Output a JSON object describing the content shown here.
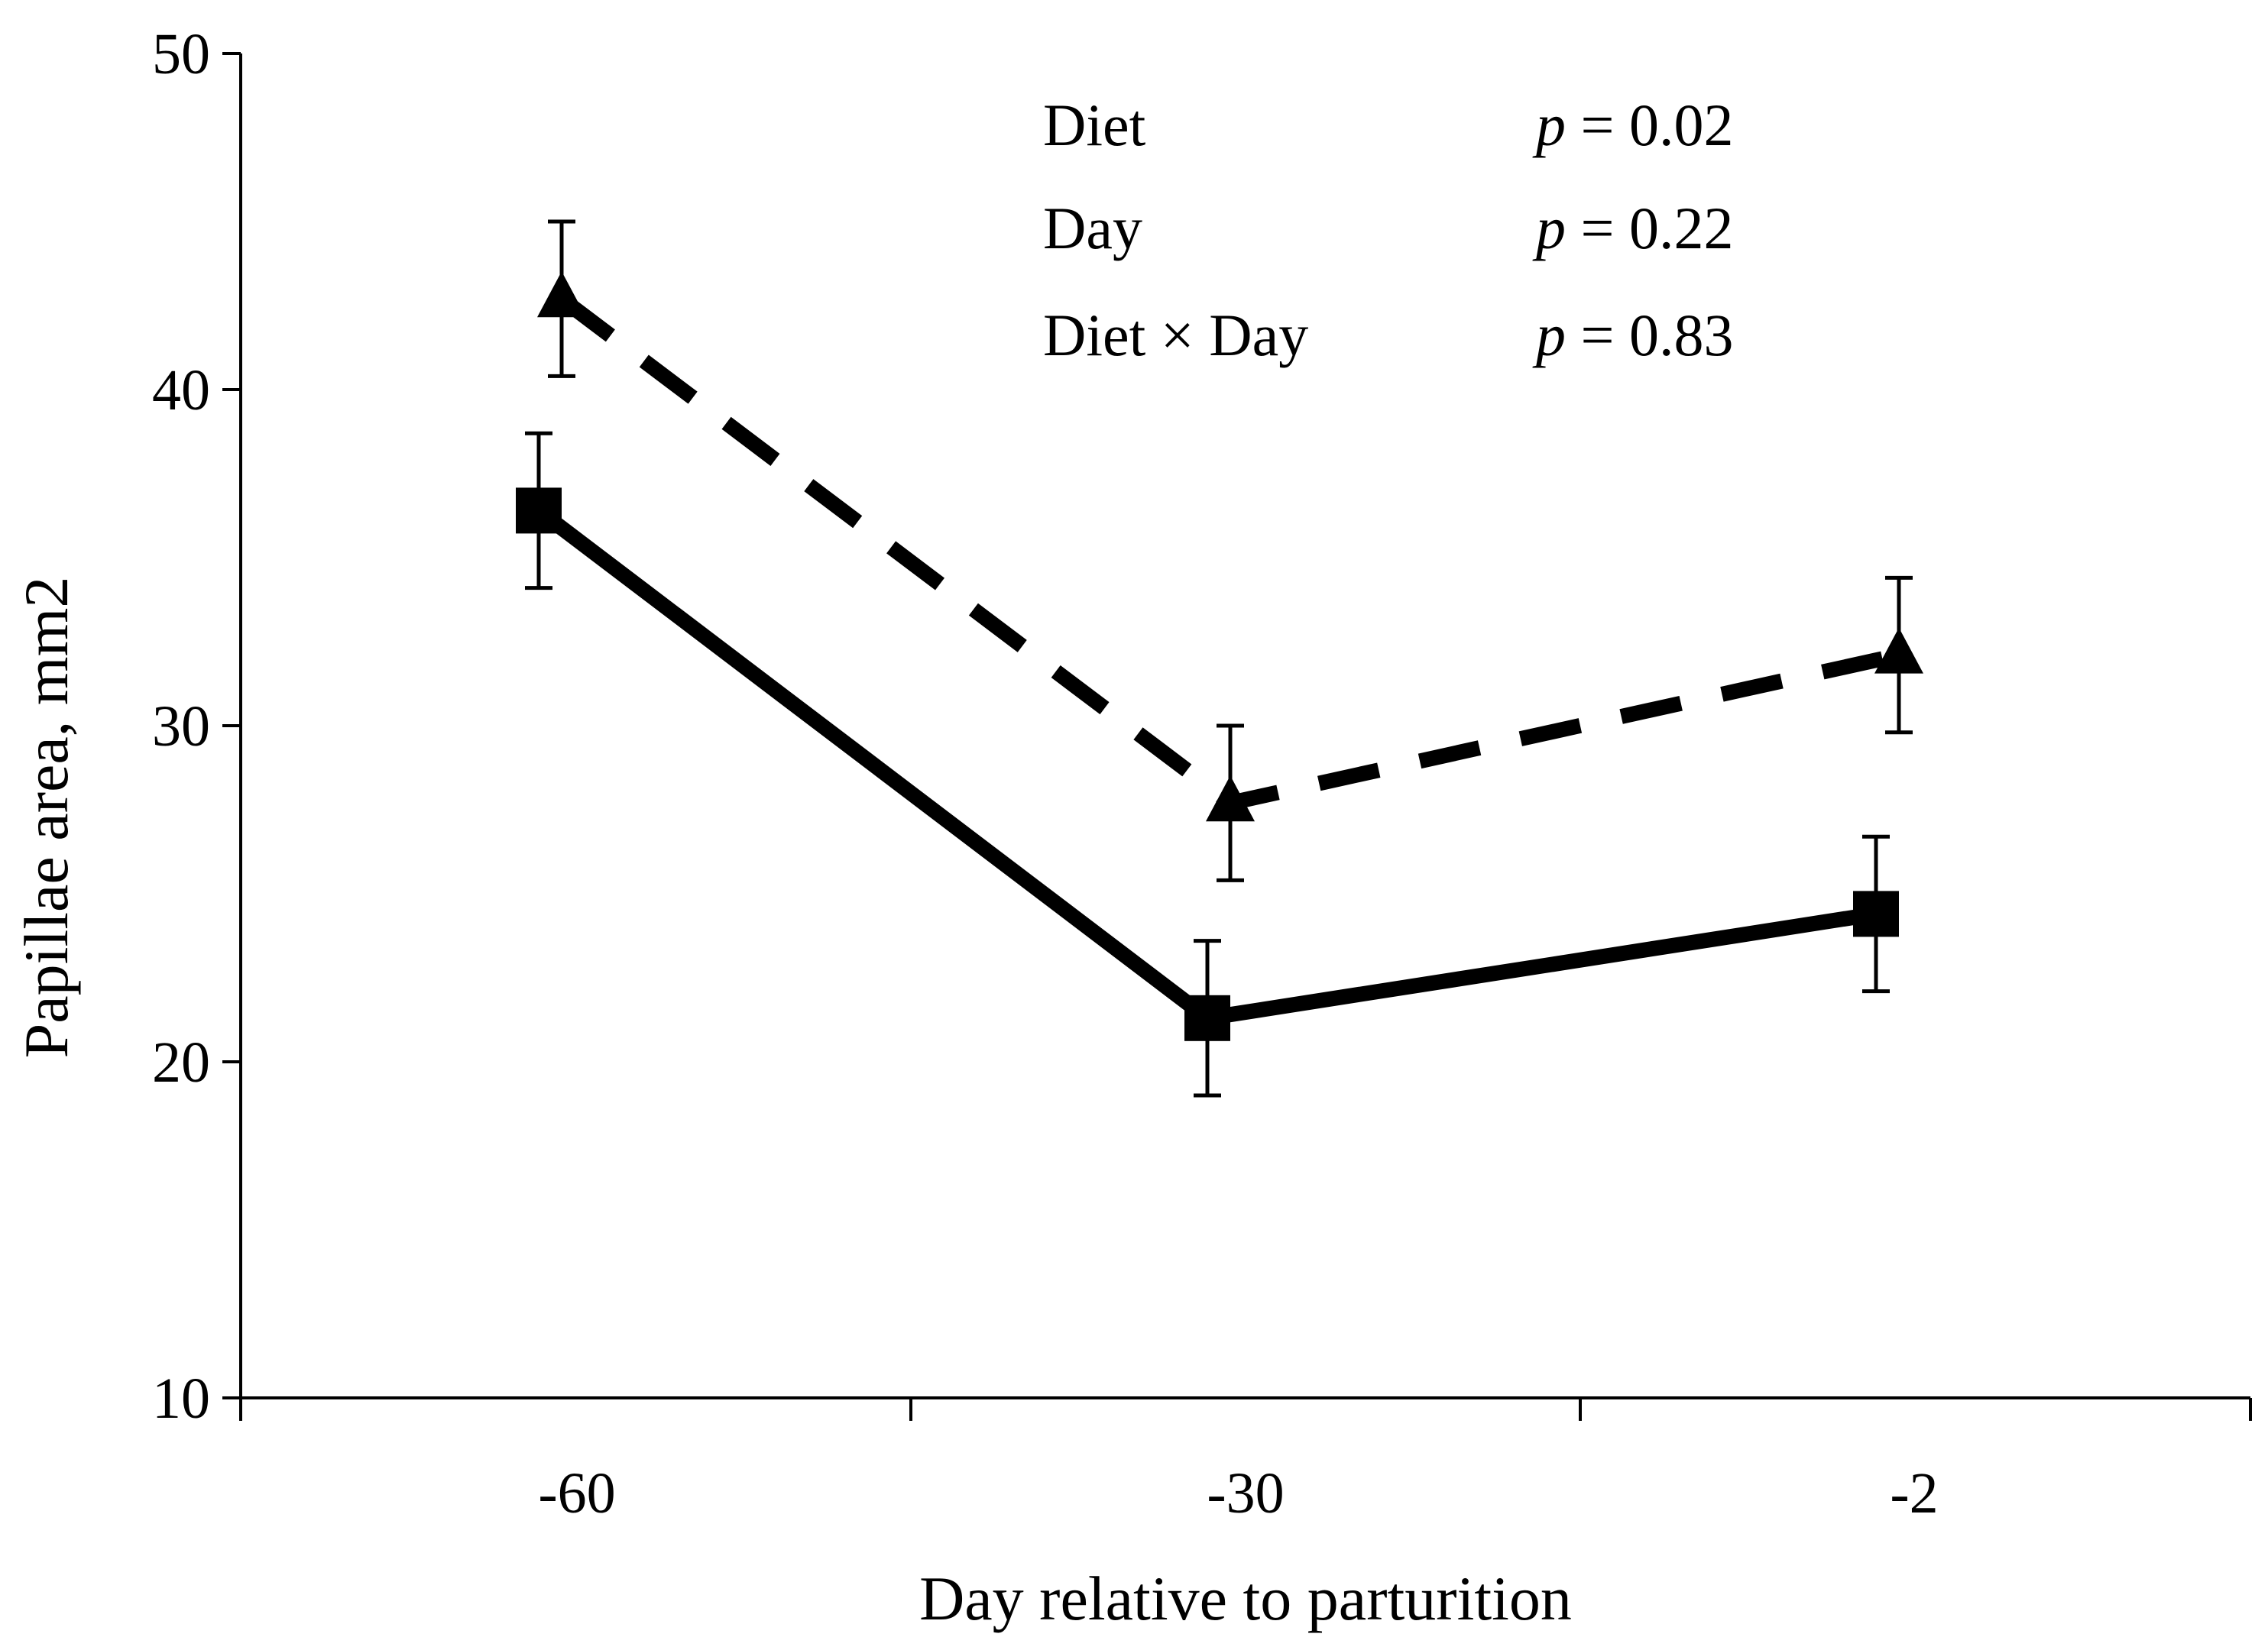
{
  "chart_data": {
    "type": "line",
    "title": "",
    "xlabel": "Day relative to parturition",
    "ylabel": "Papillae area, mm2",
    "ylim": [
      10,
      50
    ],
    "yticks": [
      "10",
      "20",
      "30",
      "40",
      "50"
    ],
    "categories": [
      "-60",
      "-30",
      "-2"
    ],
    "grid": false,
    "series": [
      {
        "name": "Triangle (dashed)",
        "marker": "triangle",
        "line_style": "dashed",
        "values": [
          42.7,
          27.7,
          32.1
        ],
        "error": [
          2.3,
          2.3,
          2.3
        ]
      },
      {
        "name": "Square (solid)",
        "marker": "square",
        "line_style": "solid",
        "values": [
          36.4,
          21.3,
          24.4
        ],
        "error": [
          2.3,
          2.3,
          2.3
        ]
      }
    ],
    "annotations": [
      {
        "term": "Diet",
        "p_symbol": "p",
        "p_value": " = 0.02"
      },
      {
        "term": "Day",
        "p_symbol": "p",
        "p_value": " = 0.22"
      },
      {
        "term": "Diet × Day",
        "p_symbol": "p",
        "p_value": " = 0.83"
      }
    ],
    "colors": {
      "line": "#000000",
      "background": "#ffffff"
    }
  }
}
